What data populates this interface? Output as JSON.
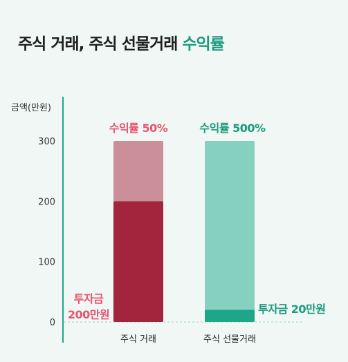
{
  "title": {
    "main": "주식 거래, 주식 선물거래 ",
    "accent": "수익률"
  },
  "colors": {
    "pink": "#e8546f",
    "green": "#1b9a7e",
    "stock_invest": "#a3243d",
    "stock_total": "#cb8f9a",
    "futures_invest": "#1ea688",
    "futures_total": "#86d0c0",
    "axis": "#1ea688"
  },
  "chart_data": {
    "type": "bar",
    "ylabel": "금액(만원)",
    "yticks": [
      "0",
      "100",
      "200",
      "300"
    ],
    "ylim": [
      0,
      300
    ],
    "categories": [
      "주식 거래",
      "주식 선물거래"
    ],
    "series": [
      {
        "values": [
          200,
          20
        ]
      },
      {
        "values": [
          300,
          300
        ]
      }
    ],
    "annotations": {
      "stock_return": "수익률 50%",
      "futures_return": "수익률 500%",
      "stock_invest_line1": "투자금",
      "stock_invest_line2": "200만원",
      "futures_invest": "투자금 20만원"
    }
  }
}
